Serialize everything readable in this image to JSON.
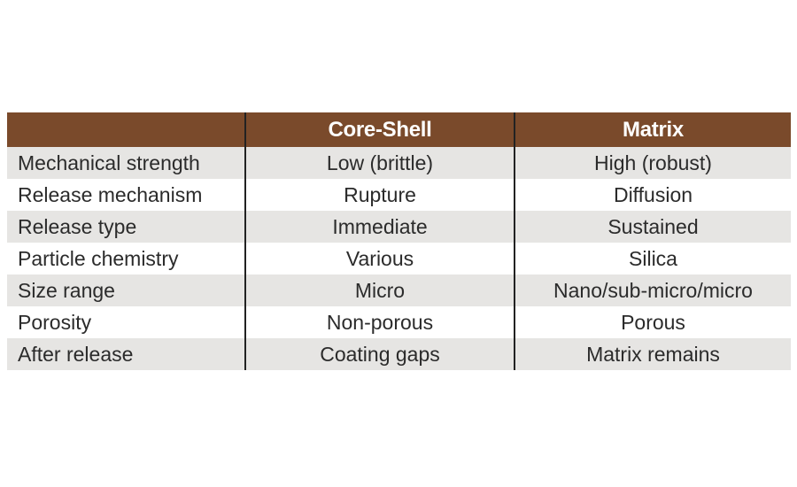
{
  "theme": {
    "page_bg": "#FFFFFF",
    "header_bg": "#7A4A2B",
    "header_text": "#FFFFFF",
    "row_alt": "#E6E5E3",
    "row_white": "#FFFFFF",
    "divider": "#222222",
    "body_text": "#2B2B2B"
  },
  "table": {
    "header": {
      "columns": [
        "",
        "Core-Shell",
        "Matrix"
      ]
    },
    "rows": [
      {
        "label": "Mechanical strength",
        "core_shell": "Low (brittle)",
        "matrix": "High (robust)"
      },
      {
        "label": "Release mechanism",
        "core_shell": "Rupture",
        "matrix": "Diffusion"
      },
      {
        "label": "Release type",
        "core_shell": "Immediate",
        "matrix": "Sustained"
      },
      {
        "label": "Particle chemistry",
        "core_shell": "Various",
        "matrix": "Silica"
      },
      {
        "label": "Size range",
        "core_shell": "Micro",
        "matrix": "Nano/sub-micro/micro"
      },
      {
        "label": "Porosity",
        "core_shell": "Non-porous",
        "matrix": "Porous"
      },
      {
        "label": "After release",
        "core_shell": "Coating gaps",
        "matrix": "Matrix remains"
      }
    ]
  },
  "chart_data": {
    "type": "table",
    "title": "",
    "columns": [
      "",
      "Core-Shell",
      "Matrix"
    ],
    "rows": [
      [
        "Mechanical strength",
        "Low (brittle)",
        "High (robust)"
      ],
      [
        "Release mechanism",
        "Rupture",
        "Diffusion"
      ],
      [
        "Release type",
        "Immediate",
        "Sustained"
      ],
      [
        "Particle chemistry",
        "Various",
        "Silica"
      ],
      [
        "Size range",
        "Micro",
        "Nano/sub-micro/micro"
      ],
      [
        "Porosity",
        "Non-porous",
        "Porous"
      ],
      [
        "After release",
        "Coating gaps",
        "Matrix remains"
      ]
    ],
    "layout_hints": {
      "header_background": "#7A4A2B",
      "alternating_row_background": "#E6E5E3",
      "column_dividers": "black vertical lines",
      "first_column_align": "left",
      "value_columns_align": "center"
    }
  }
}
